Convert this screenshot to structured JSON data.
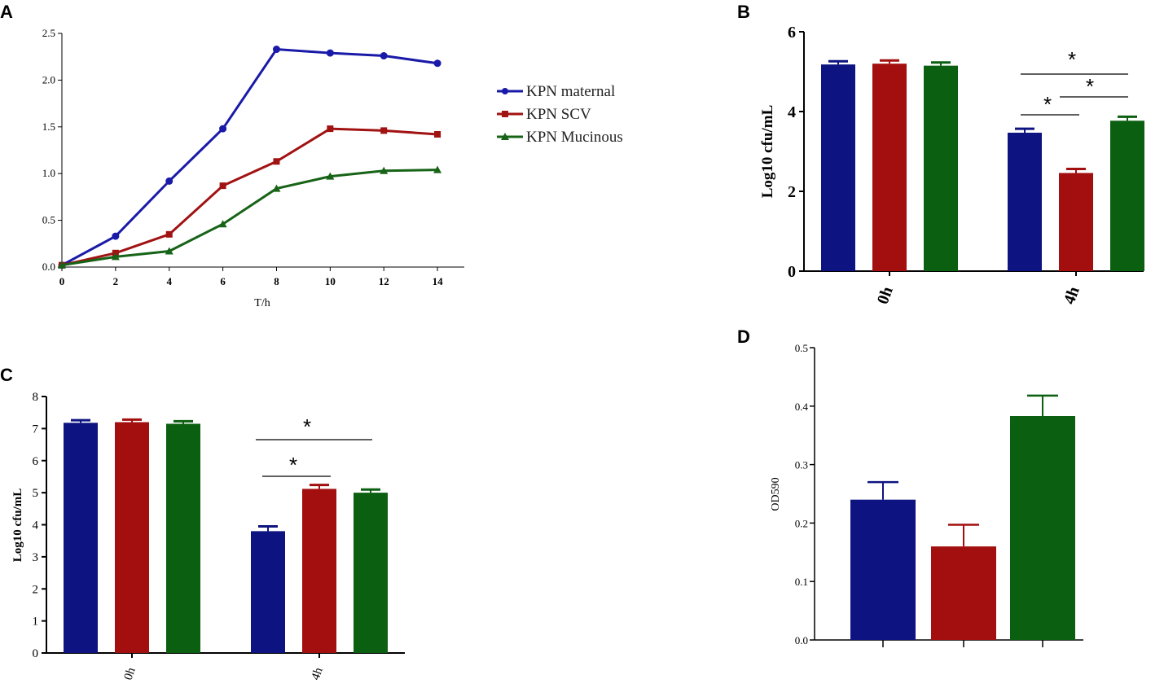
{
  "colors": {
    "maternal": "#1a1aa8",
    "scv": "#a11212",
    "mucinous": "#176317",
    "barBlue": "#0d1380",
    "barRed": "#a30f0f",
    "barGreen": "#0b5f10"
  },
  "legend": {
    "items": [
      "KPN maternal",
      "KPN SCV",
      "KPN Mucinous"
    ]
  },
  "chart_data": [
    {
      "panel": "A",
      "type": "line",
      "title": "",
      "xlabel": "T/h",
      "ylabel": "",
      "xlim": [
        0,
        15
      ],
      "ylim": [
        0,
        2.5
      ],
      "x": [
        0,
        2,
        4,
        6,
        8,
        10,
        12,
        14
      ],
      "xticks": [
        "0",
        "2",
        "4",
        "6",
        "8",
        "10",
        "12",
        "14"
      ],
      "yticks": [
        "0.0",
        "0.5",
        "1.0",
        "1.5",
        "2.0",
        "2.5"
      ],
      "series": [
        {
          "name": "KPN maternal",
          "marker": "circle",
          "values": [
            0.02,
            0.33,
            0.92,
            1.48,
            2.33,
            2.29,
            2.26,
            2.18
          ]
        },
        {
          "name": "KPN SCV",
          "marker": "square",
          "values": [
            0.02,
            0.15,
            0.35,
            0.87,
            1.13,
            1.48,
            1.46,
            1.42
          ]
        },
        {
          "name": "KPN Mucinous",
          "marker": "triangle",
          "values": [
            0.02,
            0.11,
            0.17,
            0.46,
            0.84,
            0.97,
            1.03,
            1.04
          ]
        }
      ]
    },
    {
      "panel": "B",
      "type": "bar",
      "ylabel": "Log10 cfu/mL",
      "ylim": [
        0,
        6
      ],
      "yticks": [
        "0",
        "2",
        "4",
        "6"
      ],
      "categories": [
        "0h",
        "4h"
      ],
      "series": [
        {
          "name": "KPN maternal",
          "values": [
            5.18,
            3.47
          ],
          "err": [
            0.08,
            0.1
          ]
        },
        {
          "name": "KPN SCV",
          "values": [
            5.2,
            2.46
          ],
          "err": [
            0.08,
            0.1
          ]
        },
        {
          "name": "KPN Mucinous",
          "values": [
            5.15,
            3.77
          ],
          "err": [
            0.08,
            0.1
          ]
        }
      ],
      "annotations": [
        "*",
        "*",
        "*"
      ]
    },
    {
      "panel": "C",
      "type": "bar",
      "ylabel": "Log10 cfu/mL",
      "ylim": [
        0,
        8
      ],
      "yticks": [
        "0",
        "1",
        "2",
        "3",
        "4",
        "5",
        "6",
        "7",
        "8"
      ],
      "categories": [
        "0h",
        "4h"
      ],
      "series": [
        {
          "name": "KPN maternal",
          "values": [
            7.18,
            3.8
          ],
          "err": [
            0.08,
            0.15
          ]
        },
        {
          "name": "KPN SCV",
          "values": [
            7.2,
            5.12
          ],
          "err": [
            0.08,
            0.12
          ]
        },
        {
          "name": "KPN Mucinous",
          "values": [
            7.15,
            5.0
          ],
          "err": [
            0.08,
            0.1
          ]
        }
      ],
      "annotations": [
        "*",
        "*"
      ]
    },
    {
      "panel": "D",
      "type": "bar",
      "ylabel": "OD590",
      "ylim": [
        0,
        0.5
      ],
      "yticks": [
        "0.0",
        "0.1",
        "0.2",
        "0.3",
        "0.4",
        "0.5"
      ],
      "categories": [
        "KPN maternal",
        "KPN SCV",
        "KPN Mucinous"
      ],
      "values": [
        0.24,
        0.16,
        0.383
      ],
      "err": [
        0.03,
        0.037,
        0.035
      ]
    }
  ]
}
